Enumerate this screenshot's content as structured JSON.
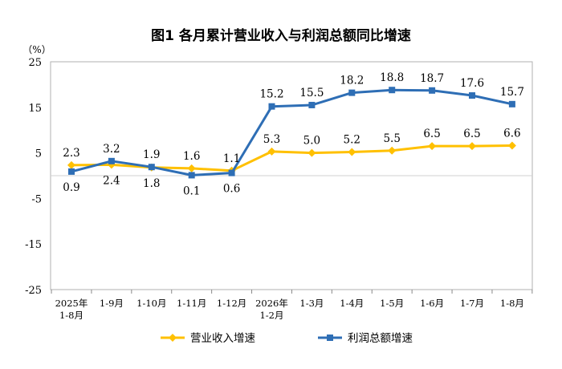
{
  "chart_data": {
    "type": "line",
    "title": "图1  各月累计营业收入与利润总额同比增速",
    "y_unit_label": "（%）",
    "ylim": [
      -25,
      25
    ],
    "yticks": [
      25,
      15,
      5,
      -5,
      -15,
      -25
    ],
    "categories": [
      [
        "2025年",
        "1-8月"
      ],
      [
        "1-9月"
      ],
      [
        "1-10月"
      ],
      [
        "1-11月"
      ],
      [
        "1-12月"
      ],
      [
        "2026年",
        "1-2月"
      ],
      [
        "1-3月"
      ],
      [
        "1-4月"
      ],
      [
        "1-5月"
      ],
      [
        "1-6月"
      ],
      [
        "1-7月"
      ],
      [
        "1-8月"
      ]
    ],
    "series": [
      {
        "name": "营业收入增速",
        "color": "#FFC000",
        "values": [
          2.3,
          2.4,
          1.8,
          1.6,
          1.1,
          5.3,
          5.0,
          5.2,
          5.5,
          6.5,
          6.5,
          6.6
        ],
        "labels": [
          "2.3",
          "2.4",
          "1.8",
          "1.6",
          "1.1",
          "5.3",
          "5.0",
          "5.2",
          "5.5",
          "6.5",
          "6.5",
          "6.6"
        ],
        "label_pos": [
          "above",
          "below",
          "below",
          "above",
          "above",
          "above",
          "above",
          "above",
          "above",
          "above",
          "above",
          "above"
        ]
      },
      {
        "name": "利润总额增速",
        "color": "#2E6EB5",
        "values": [
          0.9,
          3.2,
          1.9,
          0.1,
          0.6,
          15.2,
          15.5,
          18.2,
          18.8,
          18.7,
          17.6,
          15.7
        ],
        "labels": [
          "0.9",
          "3.2",
          "1.9",
          "0.1",
          "0.6",
          "15.2",
          "15.5",
          "18.2",
          "18.8",
          "18.7",
          "17.6",
          "15.7"
        ],
        "label_pos": [
          "below",
          "above",
          "above",
          "below",
          "below",
          "above",
          "above",
          "above",
          "above",
          "above",
          "above",
          "above"
        ]
      }
    ],
    "grid": false,
    "legend_position": "bottom"
  }
}
